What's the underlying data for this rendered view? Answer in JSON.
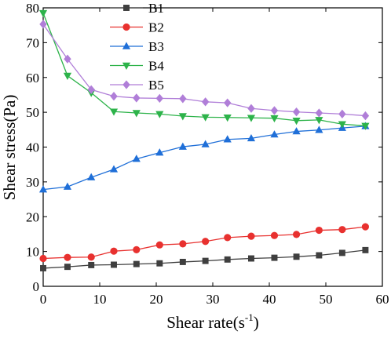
{
  "chart_data": {
    "type": "line",
    "title": "",
    "xlabel": "Shear rate(s",
    "xlabel_sup": "-1",
    "xlabel_suffix": ")",
    "ylabel": "Shear stress(Pa)",
    "xlim": [
      0,
      60
    ],
    "ylim": [
      0,
      80
    ],
    "xticks": [
      "0",
      "10",
      "20",
      "30",
      "40",
      "50",
      "60"
    ],
    "yticks": [
      "0",
      "10",
      "20",
      "30",
      "40",
      "50",
      "60",
      "70",
      "80"
    ],
    "grid": false,
    "legend_position": "top-right",
    "x": [
      0,
      4.3,
      8.5,
      12.5,
      16.5,
      20.6,
      24.7,
      28.7,
      32.6,
      36.8,
      40.9,
      44.8,
      48.8,
      52.9,
      57
    ],
    "series": [
      {
        "name": "B1",
        "color": "#3f3f3f",
        "marker": "square",
        "values": [
          5.2,
          5.6,
          6.1,
          6.2,
          6.4,
          6.6,
          7.0,
          7.3,
          7.7,
          8.0,
          8.2,
          8.5,
          8.9,
          9.6,
          10.4
        ]
      },
      {
        "name": "B2",
        "color": "#e8312f",
        "marker": "circle",
        "values": [
          8.0,
          8.3,
          8.4,
          10.1,
          10.5,
          11.9,
          12.2,
          12.9,
          14.0,
          14.4,
          14.6,
          14.9,
          16.1,
          16.3,
          17.1
        ]
      },
      {
        "name": "B3",
        "color": "#1f6fd8",
        "marker": "triangle-up",
        "values": [
          27.8,
          28.6,
          31.3,
          33.6,
          36.6,
          38.4,
          40.1,
          40.8,
          42.2,
          42.5,
          43.6,
          44.5,
          44.9,
          45.5,
          46.0
        ]
      },
      {
        "name": "B4",
        "color": "#2db34a",
        "marker": "triangle-down",
        "values": [
          78.5,
          60.5,
          55.6,
          50.2,
          49.8,
          49.5,
          48.9,
          48.6,
          48.5,
          48.4,
          48.3,
          47.6,
          47.8,
          46.6,
          46.1
        ]
      },
      {
        "name": "B5",
        "color": "#b07ed8",
        "marker": "diamond",
        "values": [
          75.3,
          65.3,
          56.5,
          54.6,
          54.1,
          54.0,
          53.9,
          53.0,
          52.7,
          51.1,
          50.5,
          50.1,
          49.8,
          49.5,
          49.0
        ]
      }
    ]
  }
}
